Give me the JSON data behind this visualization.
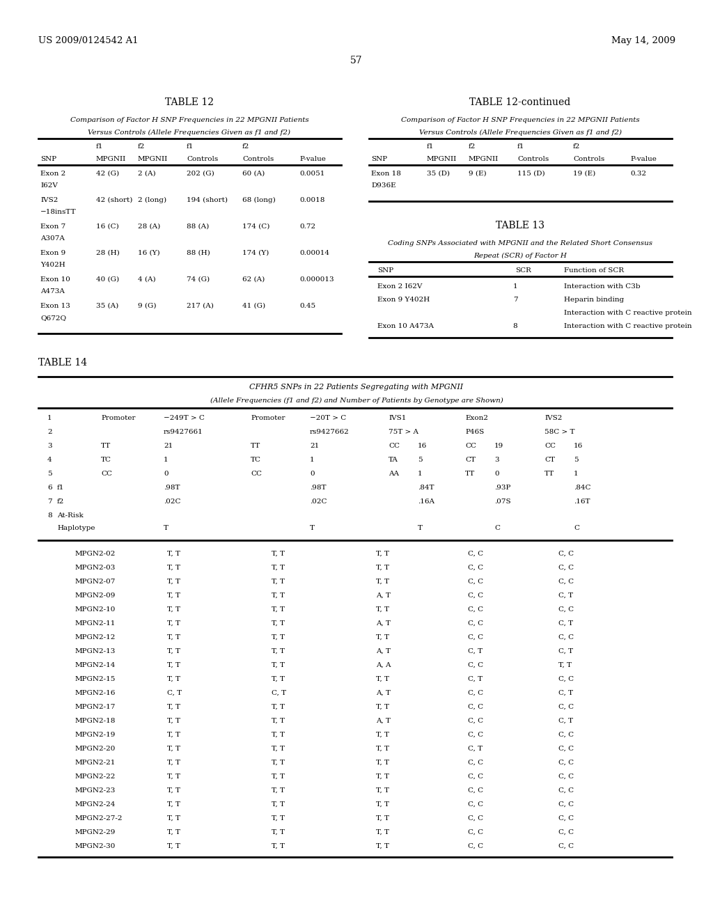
{
  "header_left": "US 2009/0124542 A1",
  "header_right": "May 14, 2009",
  "page_num": "57",
  "t12_title": "TABLE 12",
  "t12_sub1": "Comparison of Factor H SNP Frequencies in 22 MPGNII Patients",
  "t12_sub2": "Versus Controls (Allele Frequencies Given as f1 and f2)",
  "t12c_title": "TABLE 12-continued",
  "t12c_sub1": "Comparison of Factor H SNP Frequencies in 22 MPGNII Patients",
  "t12c_sub2": "Versus Controls (Allele Frequencies Given as f1 and f2)",
  "t13_title": "TABLE 13",
  "t13_sub1": "Coding SNPs Associated with MPGNII and the Related Short Consensus",
  "t13_sub2": "Repeat (SCR) of Factor H",
  "t14_title": "TABLE 14",
  "t14_sub1": "CFHR5 SNPs in 22 Patients Segregating with MPGNII",
  "t14_sub2": "(Allele Frequencies (f1 and f2) and Number of Patients by Genotype are Shown)",
  "rows12": [
    [
      "Exon 2",
      "I62V",
      "42 (G)",
      "2 (A)",
      "202 (G)",
      "60 (A)",
      "0.0051"
    ],
    [
      "IVS2",
      "−18insTT",
      "42 (short)",
      "2 (long)",
      "194 (short)",
      "68 (long)",
      "0.0018"
    ],
    [
      "Exon 7",
      "A307A",
      "16 (C)",
      "28 (A)",
      "88 (A)",
      "174 (C)",
      "0.72"
    ],
    [
      "Exon 9",
      "Y402H",
      "28 (H)",
      "16 (Y)",
      "88 (H)",
      "174 (Y)",
      "0.00014"
    ],
    [
      "Exon 10",
      "A473A",
      "40 (G)",
      "4 (A)",
      "74 (G)",
      "62 (A)",
      "0.000013"
    ],
    [
      "Exon 13",
      "Q672Q",
      "35 (A)",
      "9 (G)",
      "217 (A)",
      "41 (G)",
      "0.45"
    ]
  ],
  "rows13": [
    [
      "Exon 2 I62V",
      "1",
      "Interaction with C3b"
    ],
    [
      "Exon 9 Y402H",
      "7",
      "Heparin binding"
    ],
    [
      "",
      "",
      "Interaction with C reactive protein"
    ],
    [
      "Exon 10 A473A",
      "8",
      "Interaction with C reactive protein"
    ]
  ],
  "patients": [
    [
      "MPGN2-02",
      "T, T",
      "T, T",
      "T, T",
      "C, C",
      "C, C"
    ],
    [
      "MPGN2-03",
      "T, T",
      "T, T",
      "T, T",
      "C, C",
      "C, C"
    ],
    [
      "MPGN2-07",
      "T, T",
      "T, T",
      "T, T",
      "C, C",
      "C, C"
    ],
    [
      "MPGN2-09",
      "T, T",
      "T, T",
      "A, T",
      "C, C",
      "C, T"
    ],
    [
      "MPGN2-10",
      "T, T",
      "T, T",
      "T, T",
      "C, C",
      "C, C"
    ],
    [
      "MPGN2-11",
      "T, T",
      "T, T",
      "A, T",
      "C, C",
      "C, T"
    ],
    [
      "MPGN2-12",
      "T, T",
      "T, T",
      "T, T",
      "C, C",
      "C, C"
    ],
    [
      "MPGN2-13",
      "T, T",
      "T, T",
      "A, T",
      "C, T",
      "C, T"
    ],
    [
      "MPGN2-14",
      "T, T",
      "T, T",
      "A, A",
      "C, C",
      "T, T"
    ],
    [
      "MPGN2-15",
      "T, T",
      "T, T",
      "T, T",
      "C, T",
      "C, C"
    ],
    [
      "MPGN2-16",
      "C, T",
      "C, T",
      "A, T",
      "C, C",
      "C, T"
    ],
    [
      "MPGN2-17",
      "T, T",
      "T, T",
      "T, T",
      "C, C",
      "C, C"
    ],
    [
      "MPGN2-18",
      "T, T",
      "T, T",
      "A, T",
      "C, C",
      "C, T"
    ],
    [
      "MPGN2-19",
      "T, T",
      "T, T",
      "T, T",
      "C, C",
      "C, C"
    ],
    [
      "MPGN2-20",
      "T, T",
      "T, T",
      "T, T",
      "C, T",
      "C, C"
    ],
    [
      "MPGN2-21",
      "T, T",
      "T, T",
      "T, T",
      "C, C",
      "C, C"
    ],
    [
      "MPGN2-22",
      "T, T",
      "T, T",
      "T, T",
      "C, C",
      "C, C"
    ],
    [
      "MPGN2-23",
      "T, T",
      "T, T",
      "T, T",
      "C, C",
      "C, C"
    ],
    [
      "MPGN2-24",
      "T, T",
      "T, T",
      "T, T",
      "C, C",
      "C, C"
    ],
    [
      "MPGN2-27-2",
      "T, T",
      "T, T",
      "T, T",
      "C, C",
      "C, C"
    ],
    [
      "MPGN2-29",
      "T, T",
      "T, T",
      "T, T",
      "C, C",
      "C, C"
    ],
    [
      "MPGN2-30",
      "T, T",
      "T, T",
      "T, T",
      "C, C",
      "C, C"
    ]
  ]
}
